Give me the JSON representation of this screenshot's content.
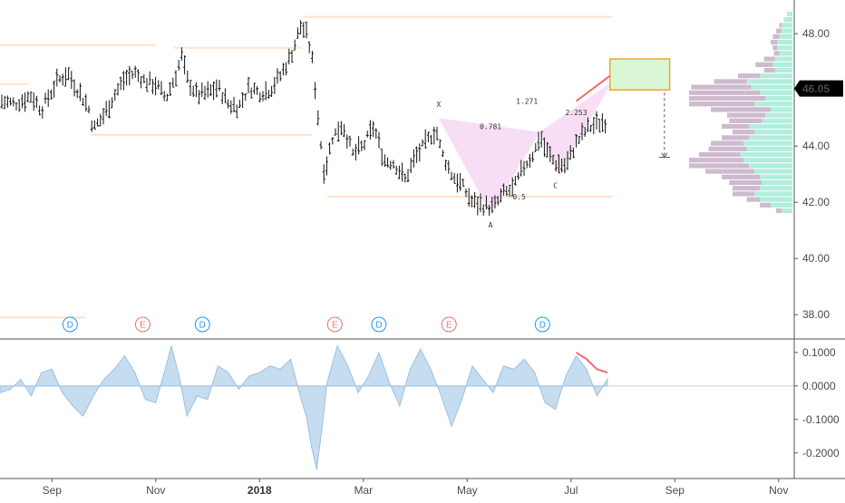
{
  "chart_data": [
    {
      "type": "ohlc",
      "panel": "price",
      "ylim": [
        37.2,
        49.2
      ],
      "yticks": [
        "48.00",
        "46.00",
        "44.00",
        "42.00",
        "40.00",
        "38.00"
      ],
      "yticks_values": [
        48,
        46,
        44,
        42,
        40,
        38
      ],
      "last_price": "46.05",
      "last_price_value": 46.05,
      "x_months": [
        "Sep",
        "Nov",
        "2018",
        "Mar",
        "May",
        "Jul",
        "Sep",
        "Nov"
      ],
      "x_month_positions": [
        1.0,
        3.0,
        5.0,
        7.0,
        9.0,
        11.0,
        13.0,
        15.0
      ],
      "x_range": [
        0.0,
        15.3
      ],
      "data_end_x": 11.7,
      "series_path": [
        [
          0,
          45.6
        ],
        [
          0.3,
          45.5
        ],
        [
          0.6,
          45.8
        ],
        [
          0.8,
          45.3
        ],
        [
          1.1,
          46.3
        ],
        [
          1.3,
          46.6
        ],
        [
          1.5,
          46.0
        ],
        [
          1.7,
          45.4
        ],
        [
          1.8,
          44.6
        ],
        [
          2.0,
          45.1
        ],
        [
          2.2,
          45.8
        ],
        [
          2.4,
          46.4
        ],
        [
          2.6,
          46.6
        ],
        [
          2.8,
          46.3
        ],
        [
          3.0,
          46.2
        ],
        [
          3.2,
          45.7
        ],
        [
          3.4,
          46.6
        ],
        [
          3.5,
          47.2
        ],
        [
          3.6,
          46.4
        ],
        [
          3.8,
          45.8
        ],
        [
          4.0,
          45.9
        ],
        [
          4.2,
          46.1
        ],
        [
          4.4,
          45.5
        ],
        [
          4.6,
          45.4
        ],
        [
          4.8,
          46.1
        ],
        [
          5.0,
          45.9
        ],
        [
          5.2,
          46.0
        ],
        [
          5.4,
          46.5
        ],
        [
          5.6,
          47.2
        ],
        [
          5.8,
          48.3
        ],
        [
          5.9,
          48.0
        ],
        [
          6.0,
          47.3
        ],
        [
          6.1,
          45.6
        ],
        [
          6.15,
          44.6
        ],
        [
          6.25,
          43.0
        ],
        [
          6.4,
          44.3
        ],
        [
          6.6,
          44.8
        ],
        [
          6.8,
          43.7
        ],
        [
          7.0,
          44.0
        ],
        [
          7.2,
          44.7
        ],
        [
          7.4,
          43.5
        ],
        [
          7.6,
          43.4
        ],
        [
          7.8,
          42.8
        ],
        [
          8.0,
          43.6
        ],
        [
          8.2,
          44.1
        ],
        [
          8.4,
          44.6
        ],
        [
          8.5,
          43.8
        ],
        [
          8.7,
          43.0
        ],
        [
          8.9,
          42.6
        ],
        [
          9.1,
          42.0
        ],
        [
          9.3,
          41.9
        ],
        [
          9.5,
          41.8
        ],
        [
          9.7,
          42.3
        ],
        [
          9.9,
          42.5
        ],
        [
          10.1,
          43.3
        ],
        [
          10.3,
          43.8
        ],
        [
          10.4,
          44.4
        ],
        [
          10.5,
          43.9
        ],
        [
          10.7,
          43.4
        ],
        [
          10.9,
          43.3
        ],
        [
          11.1,
          44.1
        ],
        [
          11.3,
          44.6
        ],
        [
          11.5,
          44.8
        ],
        [
          11.7,
          44.9
        ]
      ],
      "horizontal_levels": [
        {
          "y": 48.6,
          "x0": 5.85,
          "x1": 11.8
        },
        {
          "y": 47.6,
          "x0": 0.0,
          "x1": 3.0
        },
        {
          "y": 47.5,
          "x0": 3.35,
          "x1": 5.8
        },
        {
          "y": 46.2,
          "x0": 0.0,
          "x1": 0.55
        },
        {
          "y": 44.4,
          "x0": 1.75,
          "x1": 6.0
        },
        {
          "y": 42.2,
          "x0": 6.3,
          "x1": 11.8
        },
        {
          "y": 37.9,
          "x0": 0.0,
          "x1": 1.65
        }
      ],
      "harmonic_pattern": {
        "points": {
          "X": [
            8.45,
            45.0
          ],
          "A": [
            9.45,
            41.6
          ],
          "B": [
            10.4,
            44.5
          ],
          "C": [
            10.75,
            43.0
          ],
          "D": [
            11.8,
            46.3
          ]
        },
        "labels": [
          {
            "text": "X",
            "x": 8.45,
            "y": 45.4
          },
          {
            "text": "A",
            "x": 9.45,
            "y": 41.1
          },
          {
            "text": "C",
            "x": 10.7,
            "y": 42.5
          },
          {
            "text": "0.781",
            "x": 9.45,
            "y": 44.6
          },
          {
            "text": "1.271",
            "x": 10.15,
            "y": 45.5
          },
          {
            "text": "2.253",
            "x": 11.1,
            "y": 45.1
          },
          {
            "text": "0.5",
            "x": 10.0,
            "y": 42.1
          }
        ],
        "fill": "#f6d8f3"
      },
      "target_box": {
        "x0": 11.75,
        "x1": 12.9,
        "y0": 46.0,
        "y1": 47.1,
        "fill": "#d9f7d4",
        "stroke": "#f5a623"
      },
      "projection": {
        "x": 12.8,
        "y0": 45.9,
        "y1": 43.6,
        "y_tick": 43.6
      },
      "trend_line": {
        "x0": 11.1,
        "y0": 45.6,
        "x1": 11.75,
        "y1": 46.5,
        "color": "#ef6b6b"
      },
      "volume_profile": [
        {
          "y": 48.7,
          "up": 0.05,
          "down": 0.0
        },
        {
          "y": 48.5,
          "up": 0.08,
          "down": 0.0
        },
        {
          "y": 48.3,
          "up": 0.1,
          "down": 0.02
        },
        {
          "y": 48.1,
          "up": 0.1,
          "down": 0.05
        },
        {
          "y": 47.9,
          "up": 0.12,
          "down": 0.06
        },
        {
          "y": 47.7,
          "up": 0.14,
          "down": 0.06
        },
        {
          "y": 47.5,
          "up": 0.14,
          "down": 0.04
        },
        {
          "y": 47.3,
          "up": 0.12,
          "down": 0.05
        },
        {
          "y": 47.1,
          "up": 0.16,
          "down": 0.1
        },
        {
          "y": 46.9,
          "up": 0.18,
          "down": 0.16
        },
        {
          "y": 46.7,
          "up": 0.16,
          "down": 0.1
        },
        {
          "y": 46.5,
          "up": 0.3,
          "down": 0.2
        },
        {
          "y": 46.3,
          "up": 0.42,
          "down": 0.3
        },
        {
          "y": 46.1,
          "up": 0.38,
          "down": 0.55
        },
        {
          "y": 45.9,
          "up": 0.3,
          "down": 0.65
        },
        {
          "y": 45.7,
          "up": 0.25,
          "down": 0.7
        },
        {
          "y": 45.5,
          "up": 0.35,
          "down": 0.6
        },
        {
          "y": 45.3,
          "up": 0.2,
          "down": 0.55
        },
        {
          "y": 45.1,
          "up": 0.25,
          "down": 0.35
        },
        {
          "y": 44.9,
          "up": 0.28,
          "down": 0.3
        },
        {
          "y": 44.7,
          "up": 0.4,
          "down": 0.25
        },
        {
          "y": 44.5,
          "up": 0.35,
          "down": 0.2
        },
        {
          "y": 44.3,
          "up": 0.4,
          "down": 0.25
        },
        {
          "y": 44.1,
          "up": 0.45,
          "down": 0.3
        },
        {
          "y": 43.9,
          "up": 0.42,
          "down": 0.35
        },
        {
          "y": 43.7,
          "up": 0.48,
          "down": 0.38
        },
        {
          "y": 43.5,
          "up": 0.45,
          "down": 0.5
        },
        {
          "y": 43.3,
          "up": 0.4,
          "down": 0.55
        },
        {
          "y": 43.1,
          "up": 0.35,
          "down": 0.45
        },
        {
          "y": 42.9,
          "up": 0.3,
          "down": 0.35
        },
        {
          "y": 42.7,
          "up": 0.28,
          "down": 0.3
        },
        {
          "y": 42.5,
          "up": 0.3,
          "down": 0.25
        },
        {
          "y": 42.3,
          "up": 0.35,
          "down": 0.2
        },
        {
          "y": 42.1,
          "up": 0.3,
          "down": 0.12
        },
        {
          "y": 41.9,
          "up": 0.2,
          "down": 0.1
        },
        {
          "y": 41.7,
          "up": 0.1,
          "down": 0.05
        }
      ],
      "colors": {
        "bars": "#111111",
        "levels": "#fde3cc",
        "up_volume": "#a8ecd9",
        "down_volume": "#c9b3c9",
        "target_stroke": "#f5a623",
        "trend": "#ef6b6b"
      }
    },
    {
      "type": "area",
      "panel": "oscillator",
      "ylim": [
        -0.26,
        0.135
      ],
      "yticks": [
        "0.1000",
        "0.0000",
        "-0.1000",
        "-0.2000"
      ],
      "yticks_values": [
        0.1,
        0.0,
        -0.1,
        -0.2
      ],
      "x_range": [
        0.0,
        15.3
      ],
      "x": [
        0.0,
        0.2,
        0.4,
        0.6,
        0.8,
        1.0,
        1.2,
        1.4,
        1.6,
        1.8,
        2.0,
        2.2,
        2.4,
        2.6,
        2.8,
        3.0,
        3.2,
        3.3,
        3.45,
        3.6,
        3.8,
        4.0,
        4.2,
        4.4,
        4.6,
        4.8,
        5.0,
        5.2,
        5.4,
        5.6,
        5.8,
        5.9,
        6.0,
        6.1,
        6.2,
        6.3,
        6.5,
        6.7,
        6.9,
        7.1,
        7.3,
        7.5,
        7.7,
        7.9,
        8.1,
        8.3,
        8.5,
        8.7,
        8.9,
        9.1,
        9.3,
        9.5,
        9.7,
        9.9,
        10.1,
        10.3,
        10.5,
        10.7,
        10.9,
        11.1,
        11.3,
        11.5,
        11.7
      ],
      "y": [
        -0.02,
        -0.01,
        0.02,
        -0.03,
        0.04,
        0.05,
        -0.02,
        -0.06,
        -0.09,
        -0.03,
        0.02,
        0.05,
        0.09,
        0.04,
        -0.04,
        -0.05,
        0.06,
        0.12,
        0.03,
        -0.09,
        -0.03,
        -0.04,
        0.06,
        0.04,
        -0.01,
        0.03,
        0.04,
        0.06,
        0.05,
        0.08,
        -0.04,
        -0.09,
        -0.18,
        -0.25,
        -0.13,
        0.01,
        0.12,
        0.06,
        -0.02,
        0.03,
        0.1,
        0.01,
        -0.06,
        0.05,
        0.11,
        0.05,
        -0.03,
        -0.12,
        -0.04,
        0.06,
        0.02,
        -0.02,
        0.06,
        0.05,
        0.08,
        0.04,
        -0.05,
        -0.07,
        0.03,
        0.09,
        0.05,
        -0.03,
        0.02
      ],
      "trend_line": {
        "x": [
          11.1,
          11.3,
          11.5,
          11.7
        ],
        "y": [
          0.1,
          0.08,
          0.05,
          0.04
        ]
      },
      "colors": {
        "area": "#bcd6ec",
        "line": "#9cc1e3",
        "trend": "#ef6b6b"
      }
    }
  ],
  "events": [
    {
      "label": "D",
      "x": 1.35,
      "color": "#2196f3"
    },
    {
      "label": "E",
      "x": 2.75,
      "color": "#e57373"
    },
    {
      "label": "D",
      "x": 3.9,
      "color": "#2196f3"
    },
    {
      "label": "E",
      "x": 6.45,
      "color": "#e57373"
    },
    {
      "label": "D",
      "x": 7.3,
      "color": "#2196f3"
    },
    {
      "label": "E",
      "x": 8.65,
      "color": "#e57373"
    },
    {
      "label": "D",
      "x": 10.45,
      "color": "#2196f3"
    }
  ],
  "colors": {
    "axis_text": "#4a4a4a",
    "price_label_bg": "#000000",
    "price_label_text": "#ffffff",
    "grid": "#eeeeee"
  }
}
